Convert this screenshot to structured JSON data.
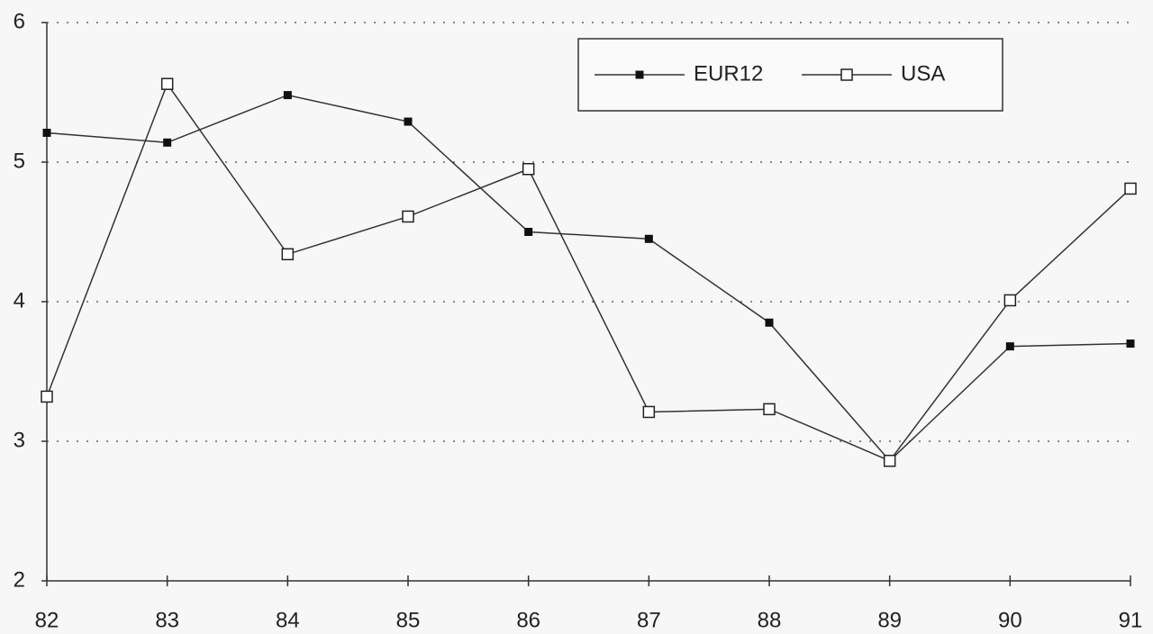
{
  "chart_data": {
    "type": "line",
    "categories": [
      "82",
      "83",
      "84",
      "85",
      "86",
      "87",
      "88",
      "89",
      "90",
      "91"
    ],
    "series": [
      {
        "name": "EUR12",
        "color": "#333333",
        "marker_fill": "#111111",
        "values": [
          5.21,
          5.14,
          5.48,
          5.29,
          4.5,
          4.45,
          3.85,
          2.86,
          3.68,
          3.7
        ]
      },
      {
        "name": "USA",
        "color": "#333333",
        "marker_fill": "#ffffff",
        "values": [
          3.32,
          5.56,
          4.34,
          4.61,
          4.95,
          3.21,
          3.23,
          2.86,
          4.01,
          4.81
        ]
      }
    ],
    "ylim": [
      2,
      6
    ],
    "yticks": [
      2,
      3,
      4,
      5,
      6
    ],
    "grid": true
  }
}
